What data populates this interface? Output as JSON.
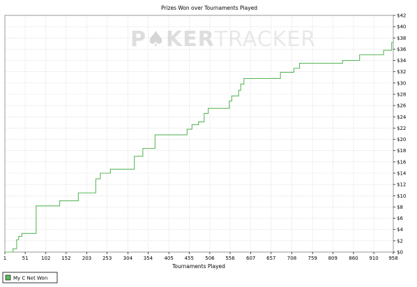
{
  "chart_data": {
    "type": "line",
    "title": "Prizes Won over Tournaments Played",
    "xlabel": "Tournaments Played",
    "ylabel": "",
    "xlim": [
      1,
      958
    ],
    "ylim": [
      0,
      42
    ],
    "x_ticks": [
      1,
      51,
      102,
      152,
      203,
      253,
      304,
      354,
      405,
      455,
      506,
      556,
      607,
      657,
      708,
      759,
      809,
      860,
      910,
      958
    ],
    "y_ticks": [
      0,
      2,
      4,
      6,
      8,
      10,
      12,
      14,
      16,
      18,
      20,
      22,
      24,
      26,
      28,
      30,
      32,
      34,
      36,
      38,
      40,
      42
    ],
    "y_tick_prefix": "$",
    "grid": true,
    "legend_position": "bottom-left",
    "series": [
      {
        "name": "My C Net Won",
        "color": "#5cb85c",
        "step": true,
        "points": [
          [
            1,
            0
          ],
          [
            21,
            0
          ],
          [
            21,
            0.6
          ],
          [
            30,
            0.6
          ],
          [
            30,
            2.2
          ],
          [
            35,
            2.2
          ],
          [
            35,
            2.8
          ],
          [
            43,
            2.8
          ],
          [
            43,
            3.3
          ],
          [
            78,
            3.3
          ],
          [
            78,
            8.2
          ],
          [
            136,
            8.2
          ],
          [
            136,
            9.1
          ],
          [
            182,
            9.1
          ],
          [
            182,
            10.5
          ],
          [
            225,
            10.5
          ],
          [
            225,
            13.0
          ],
          [
            236,
            13.0
          ],
          [
            236,
            14.0
          ],
          [
            261,
            14.0
          ],
          [
            261,
            14.7
          ],
          [
            320,
            14.7
          ],
          [
            320,
            17.0
          ],
          [
            341,
            17.0
          ],
          [
            341,
            18.4
          ],
          [
            371,
            18.4
          ],
          [
            371,
            20.8
          ],
          [
            450,
            20.8
          ],
          [
            450,
            21.8
          ],
          [
            462,
            21.8
          ],
          [
            462,
            22.6
          ],
          [
            478,
            22.6
          ],
          [
            478,
            23.1
          ],
          [
            492,
            23.1
          ],
          [
            492,
            24.6
          ],
          [
            502,
            24.6
          ],
          [
            502,
            25.5
          ],
          [
            554,
            25.5
          ],
          [
            554,
            26.8
          ],
          [
            560,
            26.8
          ],
          [
            560,
            27.7
          ],
          [
            577,
            27.7
          ],
          [
            577,
            28.7
          ],
          [
            582,
            28.7
          ],
          [
            582,
            29.8
          ],
          [
            590,
            29.8
          ],
          [
            590,
            30.8
          ],
          [
            680,
            30.8
          ],
          [
            680,
            31.9
          ],
          [
            713,
            31.9
          ],
          [
            713,
            32.6
          ],
          [
            727,
            32.6
          ],
          [
            727,
            33.5
          ],
          [
            833,
            33.5
          ],
          [
            833,
            34.0
          ],
          [
            875,
            34.0
          ],
          [
            875,
            35.0
          ],
          [
            934,
            35.0
          ],
          [
            934,
            35.8
          ],
          [
            954,
            35.8
          ],
          [
            954,
            37.2
          ],
          [
            958,
            37.2
          ]
        ]
      }
    ]
  },
  "watermark": {
    "left": "P",
    "suit": "♠",
    "right": "KER",
    "second": "TRACKER"
  }
}
